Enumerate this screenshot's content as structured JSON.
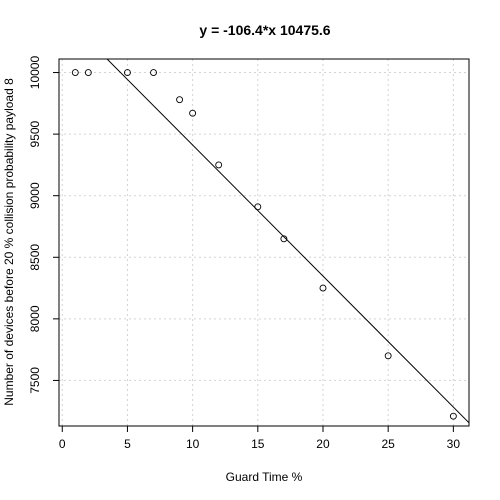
{
  "chart_data": {
    "type": "scatter",
    "title": "y = -106.4*x 10475.6",
    "xlabel": "Guard Time %",
    "ylabel": "Number of devices before  20 % collision probability payload 8",
    "xlim": [
      -0.25,
      31.2
    ],
    "ylim": [
      7130,
      10110
    ],
    "x_ticks": [
      0,
      5,
      10,
      15,
      20,
      25,
      30
    ],
    "y_ticks": [
      7500,
      8000,
      8500,
      9000,
      9500,
      10000
    ],
    "grid": true,
    "points": [
      {
        "x": 1,
        "y": 10000
      },
      {
        "x": 2,
        "y": 10000
      },
      {
        "x": 5,
        "y": 10000
      },
      {
        "x": 7,
        "y": 10000
      },
      {
        "x": 9,
        "y": 9780
      },
      {
        "x": 10,
        "y": 9670
      },
      {
        "x": 12,
        "y": 9250
      },
      {
        "x": 15,
        "y": 8910
      },
      {
        "x": 17,
        "y": 8650
      },
      {
        "x": 20,
        "y": 8250
      },
      {
        "x": 25,
        "y": 7700
      },
      {
        "x": 30,
        "y": 7210
      }
    ],
    "fit_line": {
      "slope": -106.4,
      "intercept": 10475.6
    }
  }
}
